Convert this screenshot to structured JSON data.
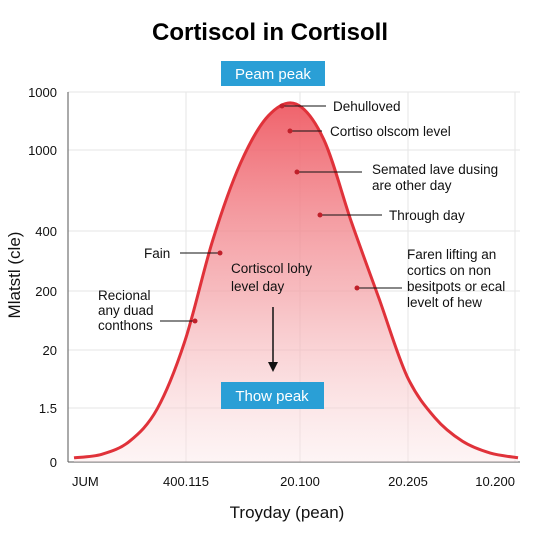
{
  "chart_data": {
    "type": "area",
    "title": "Cortiscol in Cortisoll",
    "xlabel": "Troyday (pean)",
    "ylabel": "Mlatstl (cle)",
    "x_tick_labels": [
      "JUM",
      "400.115",
      "20.100",
      "20.205",
      "10.200"
    ],
    "y_tick_labels": [
      "0",
      "1.5",
      "20",
      "200",
      "400",
      "1000",
      "1000"
    ],
    "grid": true,
    "series_color": "#e0323a",
    "fill_top_color": "#ef5a63",
    "badge_color": "#2a9fd6",
    "curve": {
      "x": [
        0.0,
        0.25,
        0.5,
        0.75,
        1.0,
        1.25,
        1.5,
        1.75,
        2.0,
        2.25,
        2.5,
        2.75,
        3.0,
        3.25,
        3.5,
        3.75,
        4.0
      ],
      "y": [
        0.02,
        0.08,
        0.3,
        0.85,
        2.0,
        3.7,
        5.0,
        5.8,
        6.0,
        5.4,
        4.0,
        2.7,
        1.4,
        0.7,
        0.3,
        0.1,
        0.02
      ]
    },
    "peak_badge": "Peam peak",
    "low_badge": "Thow peak",
    "center_text": [
      "Cortiscol lohy",
      "level day"
    ],
    "annotations": [
      {
        "lines": [
          "Dehulloved"
        ]
      },
      {
        "lines": [
          "Cortiso olscom level"
        ]
      },
      {
        "lines": [
          "Semated lave dusing",
          "are other day"
        ]
      },
      {
        "lines": [
          "Through day"
        ]
      },
      {
        "lines": [
          "Faren lifting an",
          "cortics on non",
          "besitpots or ecal",
          "levelt of hew"
        ]
      },
      {
        "lines": [
          "Fain"
        ]
      },
      {
        "lines": [
          "Recional",
          "any duad",
          "conthons"
        ]
      }
    ]
  }
}
